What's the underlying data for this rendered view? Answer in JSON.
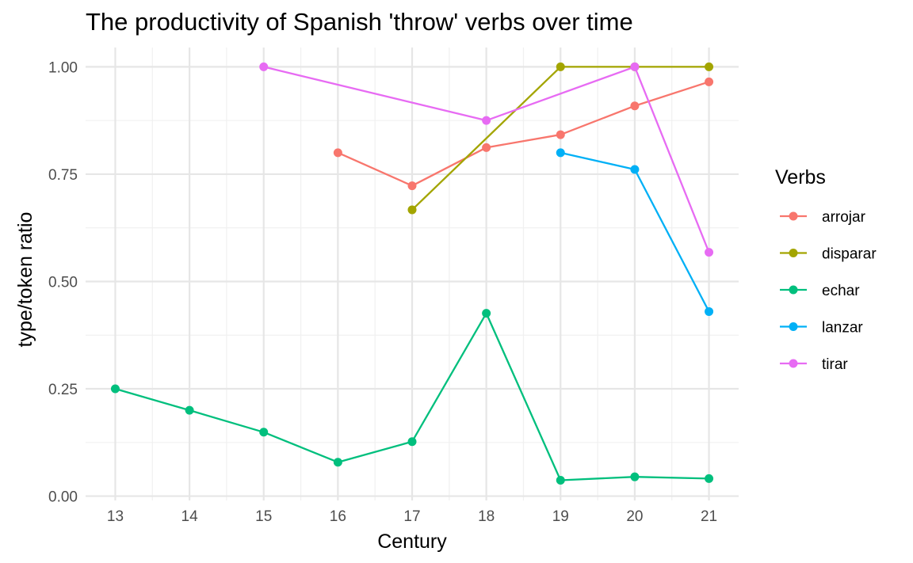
{
  "chart_data": {
    "type": "line",
    "title": "The productivity of Spanish 'throw' verbs over time",
    "xlabel": "Century",
    "ylabel": "type/token ratio",
    "x_ticks": [
      "13",
      "14",
      "15",
      "16",
      "17",
      "18",
      "19",
      "20",
      "21"
    ],
    "y_ticks": [
      "0.00",
      "0.25",
      "0.50",
      "0.75",
      "1.00"
    ],
    "xlim": [
      12.6,
      21.4
    ],
    "ylim": [
      -0.01,
      1.045
    ],
    "grid": true,
    "legend": {
      "title": "Verbs",
      "position": "right"
    },
    "series": [
      {
        "name": "arrojar",
        "color": "#F8766D",
        "points": [
          [
            16,
            0.8
          ],
          [
            17,
            0.723
          ],
          [
            18,
            0.812
          ],
          [
            19,
            0.842
          ],
          [
            20,
            0.909
          ],
          [
            21,
            0.965
          ]
        ]
      },
      {
        "name": "disparar",
        "color": "#A3A500",
        "points": [
          [
            17,
            0.667
          ],
          [
            19,
            1.0
          ],
          [
            20,
            1.0
          ],
          [
            21,
            1.0
          ]
        ]
      },
      {
        "name": "echar",
        "color": "#00BF7D",
        "points": [
          [
            13,
            0.25
          ],
          [
            14,
            0.2
          ],
          [
            15,
            0.149
          ],
          [
            16,
            0.079
          ],
          [
            17,
            0.127
          ],
          [
            18,
            0.426
          ],
          [
            19,
            0.037
          ],
          [
            20,
            0.045
          ],
          [
            21,
            0.041
          ]
        ]
      },
      {
        "name": "lanzar",
        "color": "#00B0F6",
        "points": [
          [
            19,
            0.8
          ],
          [
            20,
            0.761
          ],
          [
            21,
            0.43
          ]
        ]
      },
      {
        "name": "tirar",
        "color": "#E76BF3",
        "points": [
          [
            15,
            1.0
          ],
          [
            18,
            0.875
          ],
          [
            20,
            1.0
          ],
          [
            21,
            0.568
          ]
        ]
      }
    ]
  }
}
